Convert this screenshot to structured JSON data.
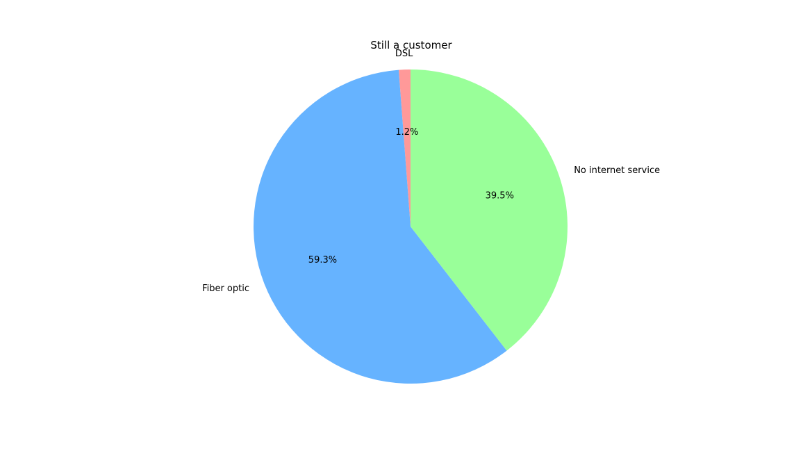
{
  "chart_data": {
    "type": "pie",
    "title": "Still a customer",
    "labels": [
      "DSL",
      "Fiber optic",
      "No internet service"
    ],
    "values": [
      1.2,
      59.3,
      39.5
    ],
    "percent_labels": [
      "1.2%",
      "59.3%",
      "39.5%"
    ],
    "colors": [
      "#ff9999",
      "#66b3ff",
      "#99ff99"
    ],
    "start_angle_deg": 90,
    "direction": "counterclockwise"
  }
}
